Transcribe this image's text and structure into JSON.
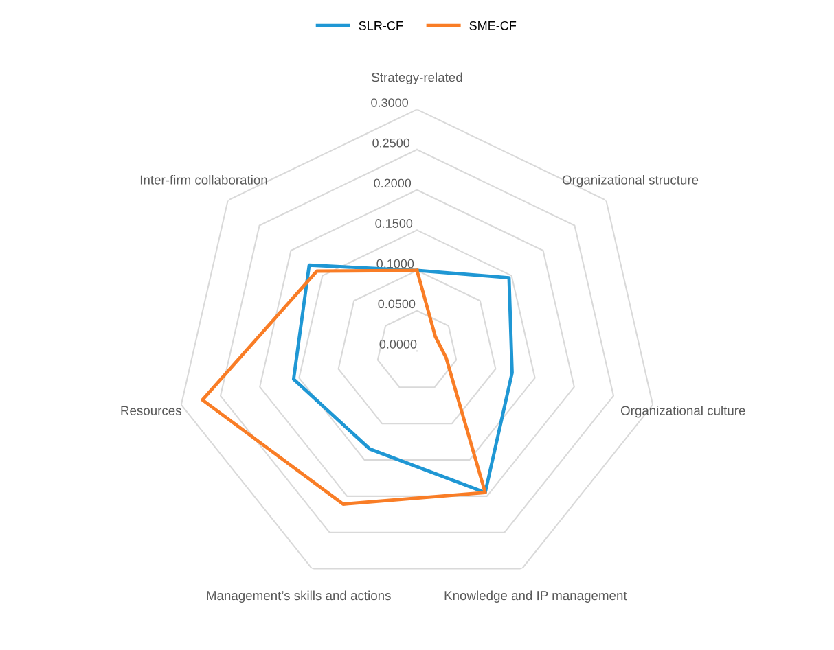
{
  "chart_data": {
    "type": "radar",
    "categories": [
      "Strategy-related",
      "Organizational structure",
      "Organizational culture",
      "Knowledge and IP management",
      "Management’s skills and actions",
      "Resources",
      "Inter-firm collaboration"
    ],
    "series": [
      {
        "name": "SLR-CF",
        "color": "#1f97d4",
        "values": [
          0.1,
          0.146,
          0.121,
          0.195,
          0.135,
          0.157,
          0.171
        ]
      },
      {
        "name": "SME-CF",
        "color": "#f97d26",
        "values": [
          0.1,
          0.029,
          0.037,
          0.195,
          0.211,
          0.273,
          0.159
        ]
      }
    ],
    "ylim": [
      0,
      0.3
    ],
    "yticks": [
      {
        "value": 0,
        "label": "0.0000"
      },
      {
        "value": 0.05,
        "label": "0.0500"
      },
      {
        "value": 0.1,
        "label": "0.1000"
      },
      {
        "value": 0.15,
        "label": "0.1500"
      },
      {
        "value": 0.2,
        "label": "0.2000"
      },
      {
        "value": 0.25,
        "label": "0.2500"
      },
      {
        "value": 0.3,
        "label": "0.3000"
      }
    ],
    "grid": true,
    "legend": "top",
    "marker": "none",
    "line_style": "solid"
  }
}
